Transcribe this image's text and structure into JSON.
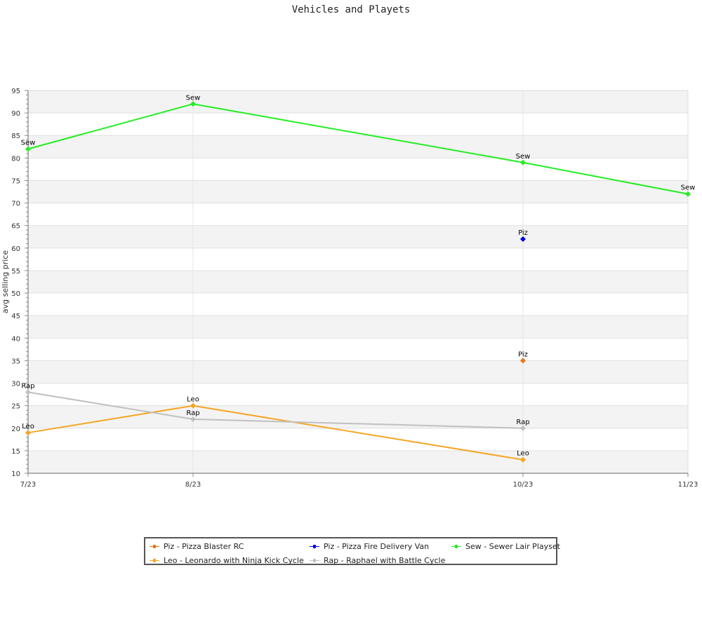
{
  "chart_data": {
    "type": "line",
    "title": "Vehicles and Playets",
    "xlabel": "",
    "ylabel": "avg selling price",
    "categories": [
      "7/23",
      "8/23",
      "10/23",
      "11/23"
    ],
    "ylim": [
      10,
      95
    ],
    "yticks": [
      10,
      15,
      20,
      25,
      30,
      35,
      40,
      45,
      50,
      55,
      60,
      65,
      70,
      75,
      80,
      85,
      90,
      95
    ],
    "grid": true,
    "legend_position": "bottom",
    "series": [
      {
        "name": "Piz - Pizza Blaster RC",
        "short": "Piz",
        "color": "#e8731a",
        "points": [
          {
            "x": "10/23",
            "y": 35
          }
        ]
      },
      {
        "name": "Piz - Pizza Fire Delivery Van",
        "short": "Piz",
        "color": "#0000dd",
        "points": [
          {
            "x": "10/23",
            "y": 62
          }
        ]
      },
      {
        "name": "Sew - Sewer Lair Playset",
        "short": "Sew",
        "color": "#22ee22",
        "points": [
          {
            "x": "7/23",
            "y": 82
          },
          {
            "x": "8/23",
            "y": 92
          },
          {
            "x": "10/23",
            "y": 79
          },
          {
            "x": "11/23",
            "y": 72
          }
        ]
      },
      {
        "name": "Leo - Leonardo with Ninja Kick Cycle",
        "short": "Leo",
        "color": "#f5a623",
        "points": [
          {
            "x": "7/23",
            "y": 19
          },
          {
            "x": "8/23",
            "y": 25
          },
          {
            "x": "10/23",
            "y": 13
          }
        ]
      },
      {
        "name": "Rap - Raphael with Battle Cycle",
        "short": "Rap",
        "color": "#c0c0c0",
        "points": [
          {
            "x": "7/23",
            "y": 28
          },
          {
            "x": "8/23",
            "y": 22
          },
          {
            "x": "10/23",
            "y": 20
          }
        ]
      }
    ]
  }
}
